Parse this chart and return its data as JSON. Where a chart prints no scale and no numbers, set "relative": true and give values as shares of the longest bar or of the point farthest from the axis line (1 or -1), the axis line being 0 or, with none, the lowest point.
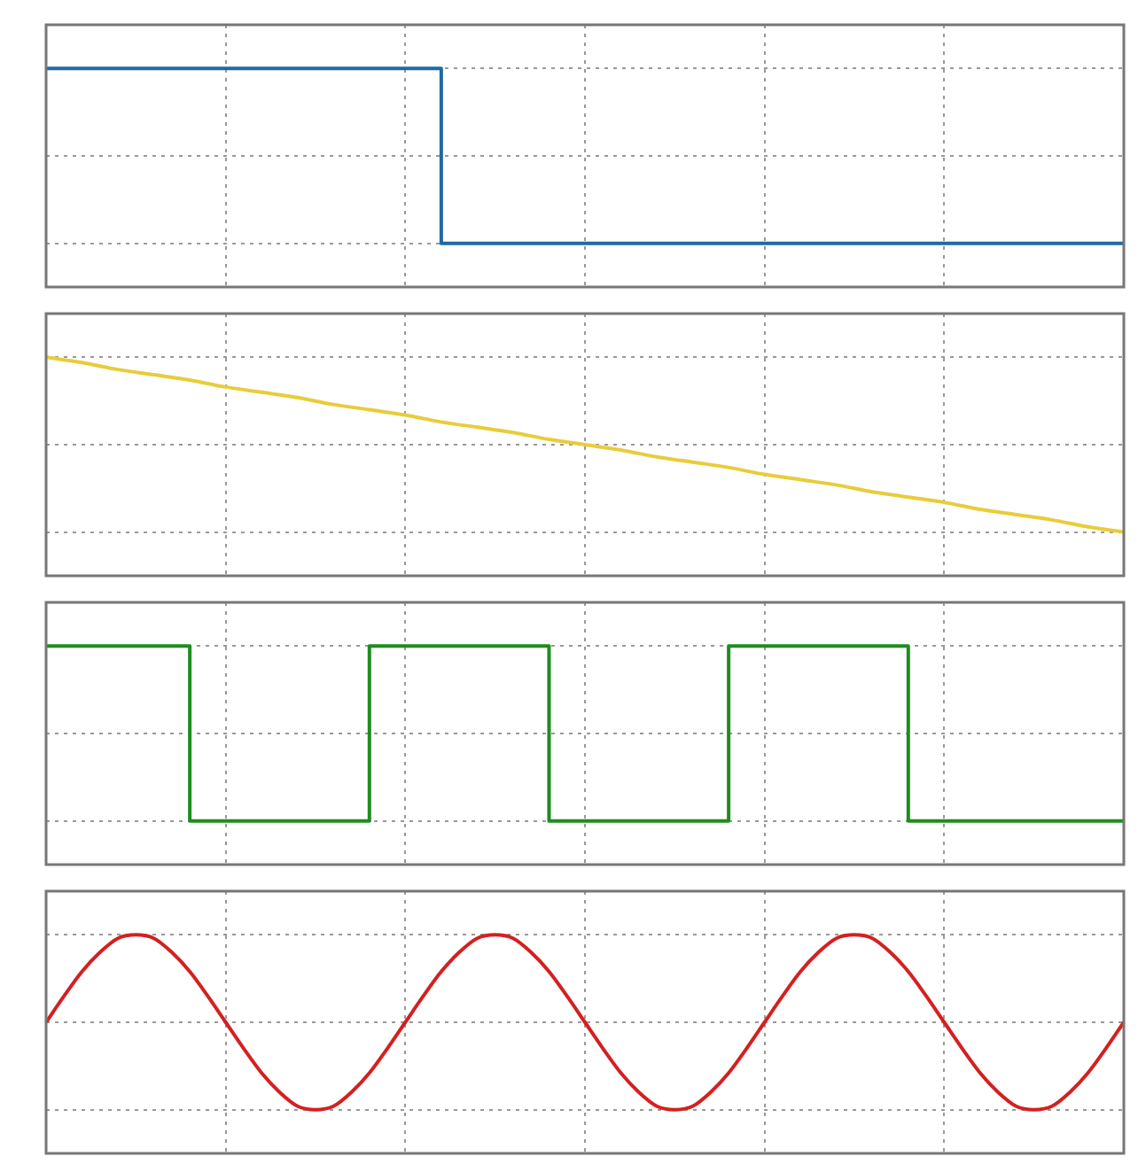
{
  "chart_data": [
    {
      "type": "step",
      "relative": true,
      "grid": true,
      "categories": [
        null,
        null,
        null,
        null,
        null,
        null,
        null,
        null,
        null,
        null,
        null,
        null,
        null,
        null,
        null,
        null,
        null,
        null,
        null,
        null,
        null,
        null,
        null,
        null,
        null,
        null,
        null,
        null,
        null,
        null,
        null
      ],
      "series": [
        {
          "color": "#1f6aa5",
          "values": [
            1,
            1,
            1,
            1,
            1,
            1,
            1,
            1,
            1,
            1,
            1,
            1,
            0,
            0,
            0,
            0,
            0,
            0,
            0,
            0,
            0,
            0,
            0,
            0,
            0,
            0,
            0,
            0,
            0,
            0,
            0
          ]
        }
      ]
    },
    {
      "type": "line",
      "relative": true,
      "grid": true,
      "categories": [
        null,
        null,
        null,
        null,
        null,
        null,
        null,
        null,
        null,
        null,
        null,
        null,
        null,
        null,
        null,
        null,
        null,
        null,
        null,
        null,
        null,
        null,
        null,
        null,
        null,
        null,
        null,
        null,
        null,
        null,
        null
      ],
      "series": [
        {
          "color": "#e8cc3a",
          "values": [
            1,
            0.97,
            0.93,
            0.9,
            0.87,
            0.83,
            0.8,
            0.77,
            0.73,
            0.7,
            0.67,
            0.63,
            0.6,
            0.57,
            0.53,
            0.5,
            0.47,
            0.43,
            0.4,
            0.37,
            0.33,
            0.3,
            0.27,
            0.23,
            0.2,
            0.17,
            0.13,
            0.1,
            0.07,
            0.03,
            0
          ]
        }
      ]
    },
    {
      "type": "step",
      "relative": true,
      "grid": true,
      "categories": [
        null,
        null,
        null,
        null,
        null,
        null,
        null,
        null,
        null,
        null,
        null,
        null,
        null,
        null,
        null,
        null,
        null,
        null,
        null,
        null,
        null,
        null,
        null,
        null,
        null,
        null,
        null,
        null,
        null,
        null,
        null
      ],
      "series": [
        {
          "color": "#1e8c1e",
          "values": [
            1,
            1,
            1,
            1,
            1,
            0,
            0,
            0,
            0,
            0,
            1,
            1,
            1,
            1,
            1,
            0,
            0,
            0,
            0,
            0,
            1,
            1,
            1,
            1,
            1,
            0,
            0,
            0,
            0,
            0,
            0
          ]
        }
      ]
    },
    {
      "type": "line",
      "relative": true,
      "grid": true,
      "categories": [
        null,
        null,
        null,
        null,
        null,
        null,
        null,
        null,
        null,
        null,
        null,
        null,
        null,
        null,
        null,
        null,
        null,
        null,
        null,
        null,
        null,
        null,
        null,
        null,
        null,
        null,
        null,
        null,
        null,
        null,
        null,
        null,
        null,
        null,
        null,
        null,
        null,
        null,
        null,
        null,
        null,
        null,
        null,
        null,
        null,
        null,
        null,
        null,
        null,
        null,
        null,
        null,
        null,
        null,
        null,
        null,
        null,
        null,
        null,
        null,
        null
      ],
      "series": [
        {
          "color": "#d42020",
          "values": [
            0.5,
            0.65,
            0.79,
            0.9,
            0.98,
            1,
            0.98,
            0.9,
            0.79,
            0.65,
            0.5,
            0.35,
            0.21,
            0.1,
            0.02,
            0,
            0.02,
            0.1,
            0.21,
            0.35,
            0.5,
            0.65,
            0.79,
            0.9,
            0.98,
            1,
            0.98,
            0.9,
            0.79,
            0.65,
            0.5,
            0.35,
            0.21,
            0.1,
            0.02,
            0,
            0.02,
            0.1,
            0.21,
            0.35,
            0.5,
            0.65,
            0.79,
            0.9,
            0.98,
            1,
            0.98,
            0.9,
            0.79,
            0.65,
            0.5,
            0.35,
            0.21,
            0.1,
            0.02,
            0,
            0.02,
            0.1,
            0.21,
            0.35,
            0.5
          ]
        }
      ]
    }
  ]
}
